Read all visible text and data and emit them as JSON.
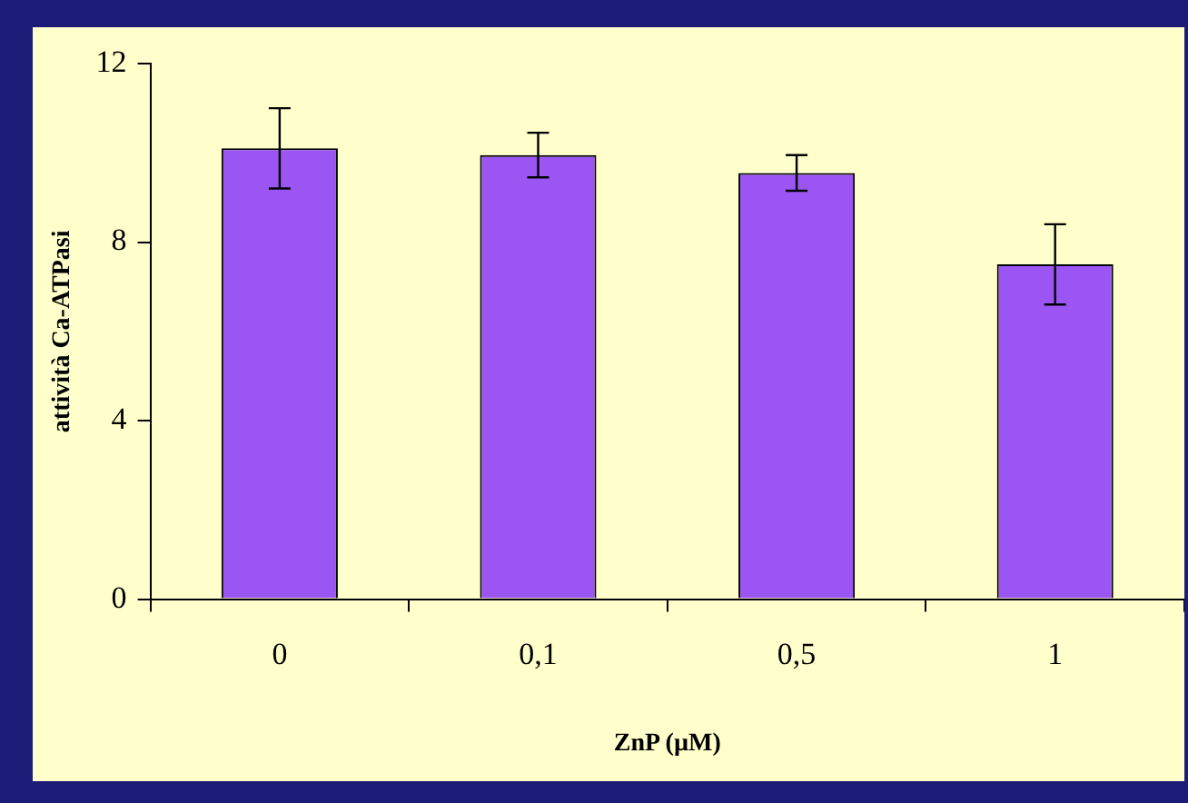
{
  "chart_data": {
    "type": "bar",
    "xlabel": "ZnP (µM)",
    "ylabel": "attività Ca-ATPasi",
    "categories": [
      "0",
      "0,1",
      "0,5",
      "1"
    ],
    "series": [
      {
        "color": "#9a55f2",
        "values": [
          10.1,
          9.95,
          9.55,
          7.5
        ],
        "errors": [
          0.9,
          0.5,
          0.4,
          0.9
        ]
      }
    ],
    "ylim": [
      0,
      12
    ],
    "yticks": [
      0,
      4,
      8,
      12
    ],
    "grid": false,
    "legend": false
  }
}
